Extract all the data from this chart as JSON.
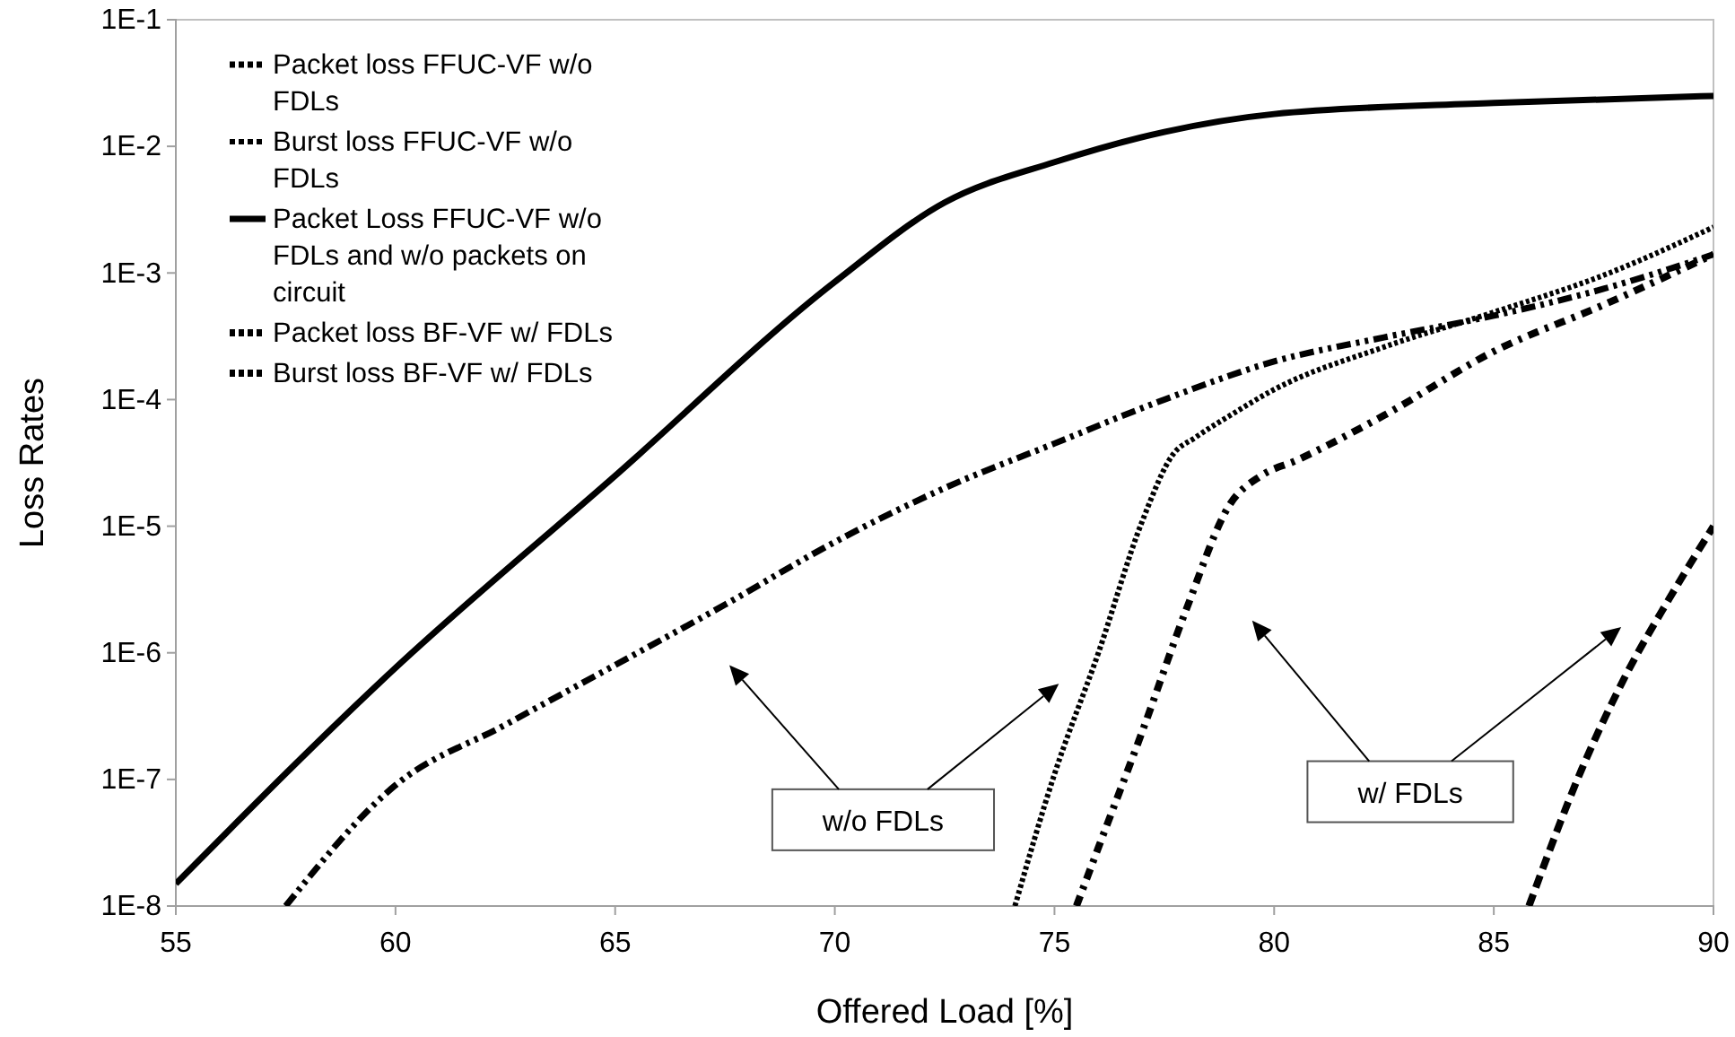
{
  "chart_data": {
    "type": "line",
    "xlabel": "Offered Load [%]",
    "ylabel": "Loss Rates",
    "xlim": [
      55,
      90
    ],
    "xticks": [
      55,
      60,
      65,
      70,
      75,
      80,
      85,
      90
    ],
    "ylim": [
      1e-08,
      0.1
    ],
    "yticks": [
      {
        "value": 1e-08,
        "label": "1E-8"
      },
      {
        "value": 1e-07,
        "label": "1E-7"
      },
      {
        "value": 1e-06,
        "label": "1E-6"
      },
      {
        "value": 1e-05,
        "label": "1E-5"
      },
      {
        "value": 0.0001,
        "label": "1E-4"
      },
      {
        "value": 0.001,
        "label": "1E-3"
      },
      {
        "value": 0.01,
        "label": "1E-2"
      },
      {
        "value": 0.1,
        "label": "1E-1"
      }
    ],
    "log": "y",
    "grid": false,
    "legend": "top left",
    "marker": "none",
    "series": [
      {
        "name": "Packet loss FFUC-VF  w/o FDLs",
        "color": "#000000",
        "line_style": "dotted",
        "x": [
          57.5,
          60,
          62.5,
          65,
          67.5,
          70,
          72.5,
          75,
          77.5,
          80,
          82.5,
          85,
          87.5,
          90
        ],
        "values": [
          1e-08,
          9e-08,
          2.7e-07,
          8e-07,
          2.4e-06,
          7.5e-06,
          2e-05,
          4.5e-05,
          0.0001,
          0.0002,
          0.00031,
          0.00046,
          0.00075,
          0.0014
        ]
      },
      {
        "name": "Burst loss FFUC-VF w/o FDLs",
        "color": "#000000",
        "line_style": "dotted",
        "x": [
          74.1,
          75,
          76,
          77,
          77.7,
          78.2,
          79,
          80,
          82.5,
          85,
          87.5,
          90
        ],
        "values": [
          1e-08,
          1.1e-07,
          1e-06,
          1.1e-05,
          3.7e-05,
          5e-05,
          7.5e-05,
          0.00012,
          0.00026,
          0.00049,
          0.00096,
          0.0023
        ]
      },
      {
        "name": "Packet Loss FFUC-VF w/o FDLs and w/o packets on circuit",
        "color": "#000000",
        "line_style": "solid",
        "x": [
          55,
          60,
          65,
          70,
          72.5,
          75,
          77.5,
          80,
          85,
          90
        ],
        "values": [
          1.5e-08,
          7.6e-07,
          2.5e-05,
          0.00085,
          0.0036,
          0.0075,
          0.013,
          0.018,
          0.022,
          0.025
        ]
      },
      {
        "name": "Packet loss BF-VF w/ FDLs",
        "color": "#000000",
        "line_style": "dashed",
        "x": [
          85.8,
          87,
          88,
          89,
          90
        ],
        "values": [
          1e-08,
          1.2e-07,
          6.6e-07,
          2.7e-06,
          1e-05
        ]
      },
      {
        "name": "Burst loss BF-VF w/ FDLs",
        "color": "#000000",
        "line_style": "dashed",
        "x": [
          75.5,
          76,
          77,
          78,
          79,
          79.7,
          80.5,
          82.5,
          85,
          87.5,
          90
        ],
        "values": [
          1e-08,
          2.9e-08,
          2.4e-07,
          2.2e-06,
          1.5e-05,
          2.5e-05,
          3.3e-05,
          7.5e-05,
          0.00024,
          0.00056,
          0.0014
        ]
      }
    ],
    "annotations": [
      "w/o FDLs",
      "w/ FDLs"
    ]
  }
}
